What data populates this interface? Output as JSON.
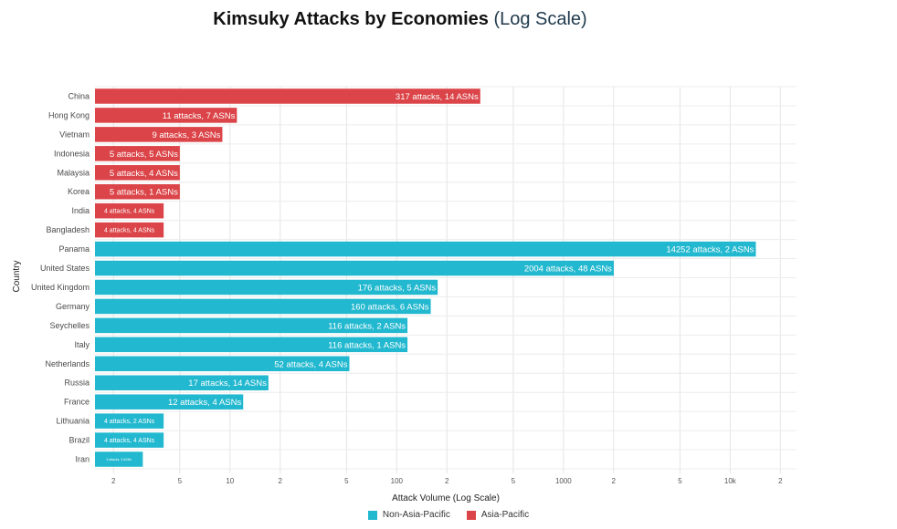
{
  "title_main": "Kimsuky Attacks by Economies",
  "title_sub": "(Log Scale)",
  "colors": {
    "asia_pacific": "#DB4448",
    "non_asia_pacific": "#22B8CF"
  },
  "legend": [
    {
      "label": "Non-Asia-Pacific",
      "color": "#22B8CF"
    },
    {
      "label": "Asia-Pacific",
      "color": "#DB4448"
    }
  ],
  "chart_data": {
    "type": "bar",
    "orientation": "horizontal",
    "title": "Kimsuky Attacks by Economies (Log Scale)",
    "xlabel": "Attack Volume (Log Scale)",
    "ylabel": "Country",
    "x_scale": "log",
    "xlim": [
      1.55,
      25000
    ],
    "x_ticks": [
      {
        "value": 2,
        "label": "2"
      },
      {
        "value": 5,
        "label": "5"
      },
      {
        "value": 10,
        "label": "10"
      },
      {
        "value": 20,
        "label": "2"
      },
      {
        "value": 50,
        "label": "5"
      },
      {
        "value": 100,
        "label": "100"
      },
      {
        "value": 200,
        "label": "2"
      },
      {
        "value": 500,
        "label": "5"
      },
      {
        "value": 1000,
        "label": "1000"
      },
      {
        "value": 2000,
        "label": "2"
      },
      {
        "value": 5000,
        "label": "5"
      },
      {
        "value": 10000,
        "label": "10k"
      },
      {
        "value": 20000,
        "label": "2"
      }
    ],
    "grid": true,
    "legend_position": "bottom",
    "series": [
      {
        "name": "Non-Asia-Pacific",
        "color": "#22B8CF"
      },
      {
        "name": "Asia-Pacific",
        "color": "#DB4448"
      }
    ],
    "bars": [
      {
        "country": "China",
        "value": 317,
        "asns": 14,
        "group": "Asia-Pacific",
        "label": "317 attacks, 14 ASNs"
      },
      {
        "country": "Hong Kong",
        "value": 11,
        "asns": 7,
        "group": "Asia-Pacific",
        "label": "11 attacks, 7 ASNs"
      },
      {
        "country": "Vietnam",
        "value": 9,
        "asns": 3,
        "group": "Asia-Pacific",
        "label": "9 attacks, 3 ASNs"
      },
      {
        "country": "Indonesia",
        "value": 5,
        "asns": 5,
        "group": "Asia-Pacific",
        "label": "5 attacks, 5 ASNs"
      },
      {
        "country": "Malaysia",
        "value": 5,
        "asns": 4,
        "group": "Asia-Pacific",
        "label": "5 attacks, 4 ASNs"
      },
      {
        "country": "Korea",
        "value": 5,
        "asns": 1,
        "group": "Asia-Pacific",
        "label": "5 attacks, 1 ASNs"
      },
      {
        "country": "India",
        "value": 4,
        "asns": 4,
        "group": "Asia-Pacific",
        "label": "4 attacks, 4 ASNs"
      },
      {
        "country": "Bangladesh",
        "value": 4,
        "asns": 4,
        "group": "Asia-Pacific",
        "label": "4 attacks, 4 ASNs"
      },
      {
        "country": "Panama",
        "value": 14252,
        "asns": 2,
        "group": "Non-Asia-Pacific",
        "label": "14252 attacks, 2 ASNs"
      },
      {
        "country": "United States",
        "value": 2004,
        "asns": 48,
        "group": "Non-Asia-Pacific",
        "label": "2004 attacks, 48 ASNs"
      },
      {
        "country": "United Kingdom",
        "value": 176,
        "asns": 5,
        "group": "Non-Asia-Pacific",
        "label": "176 attacks, 5 ASNs"
      },
      {
        "country": "Germany",
        "value": 160,
        "asns": 6,
        "group": "Non-Asia-Pacific",
        "label": "160 attacks, 6 ASNs"
      },
      {
        "country": "Seychelles",
        "value": 116,
        "asns": 2,
        "group": "Non-Asia-Pacific",
        "label": "116 attacks, 2 ASNs"
      },
      {
        "country": "Italy",
        "value": 116,
        "asns": 1,
        "group": "Non-Asia-Pacific",
        "label": "116 attacks, 1 ASNs"
      },
      {
        "country": "Netherlands",
        "value": 52,
        "asns": 4,
        "group": "Non-Asia-Pacific",
        "label": "52 attacks, 4 ASNs"
      },
      {
        "country": "Russia",
        "value": 17,
        "asns": 14,
        "group": "Non-Asia-Pacific",
        "label": "17 attacks, 14 ASNs"
      },
      {
        "country": "France",
        "value": 12,
        "asns": 4,
        "group": "Non-Asia-Pacific",
        "label": "12 attacks, 4 ASNs"
      },
      {
        "country": "Lithuania",
        "value": 4,
        "asns": 2,
        "group": "Non-Asia-Pacific",
        "label": "4 attacks, 2 ASNs"
      },
      {
        "country": "Brazil",
        "value": 4,
        "asns": 4,
        "group": "Non-Asia-Pacific",
        "label": "4 attacks, 4 ASNs"
      },
      {
        "country": "Iran",
        "value": 3,
        "asns": 3,
        "group": "Non-Asia-Pacific",
        "label": "3 attacks, 3 ASNs"
      }
    ]
  }
}
